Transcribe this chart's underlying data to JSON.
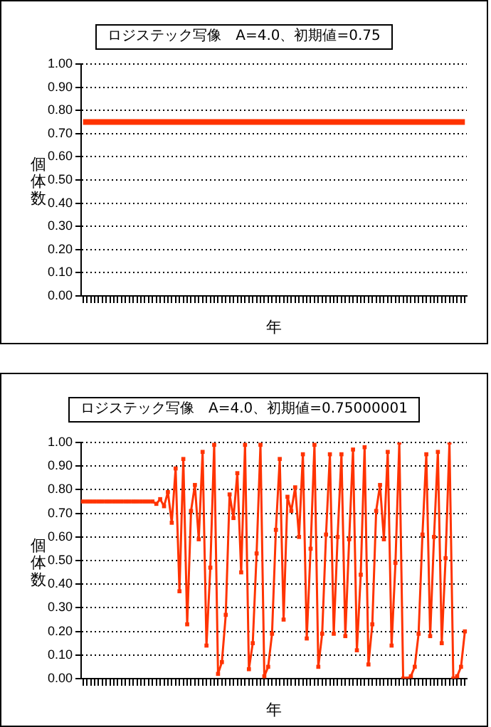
{
  "chart_data": [
    {
      "type": "line",
      "title": "ロジステック写像　A=4.0、初期値=0.75",
      "xlabel": "年",
      "ylabel": "個体数",
      "categories": [
        null,
        null,
        null,
        null,
        null,
        null,
        null,
        null,
        null,
        null,
        null,
        null,
        null,
        null,
        null,
        null,
        null,
        null,
        null,
        null,
        null,
        null,
        null,
        null,
        null,
        null,
        null,
        null,
        null,
        null,
        null,
        null,
        null,
        null,
        null,
        null,
        null,
        null,
        null,
        null,
        null,
        null,
        null,
        null,
        null,
        null,
        null,
        null,
        null,
        null,
        null,
        null,
        null,
        null,
        null,
        null,
        null,
        null,
        null,
        null,
        null,
        null,
        null,
        null,
        null,
        null,
        null,
        null,
        null,
        null,
        null,
        null,
        null,
        null,
        null,
        null,
        null,
        null,
        null,
        null,
        null,
        null,
        null,
        null,
        null,
        null,
        null,
        null,
        null,
        null,
        null,
        null,
        null,
        null,
        null,
        null,
        null,
        null,
        null,
        null
      ],
      "series": [
        {
          "color": "#ff3300",
          "values": [
            0.75,
            0.75,
            0.75,
            0.75,
            0.75,
            0.75,
            0.75,
            0.75,
            0.75,
            0.75,
            0.75,
            0.75,
            0.75,
            0.75,
            0.75,
            0.75,
            0.75,
            0.75,
            0.75,
            0.75,
            0.75,
            0.75,
            0.75,
            0.75,
            0.75,
            0.75,
            0.75,
            0.75,
            0.75,
            0.75,
            0.75,
            0.75,
            0.75,
            0.75,
            0.75,
            0.75,
            0.75,
            0.75,
            0.75,
            0.75,
            0.75,
            0.75,
            0.75,
            0.75,
            0.75,
            0.75,
            0.75,
            0.75,
            0.75,
            0.75,
            0.75,
            0.75,
            0.75,
            0.75,
            0.75,
            0.75,
            0.75,
            0.75,
            0.75,
            0.75,
            0.75,
            0.75,
            0.75,
            0.75,
            0.75,
            0.75,
            0.75,
            0.75,
            0.75,
            0.75,
            0.75,
            0.75,
            0.75,
            0.75,
            0.75,
            0.75,
            0.75,
            0.75,
            0.75,
            0.75,
            0.75,
            0.75,
            0.75,
            0.75,
            0.75,
            0.75,
            0.75,
            0.75,
            0.75,
            0.75,
            0.75,
            0.75,
            0.75,
            0.75,
            0.75,
            0.75,
            0.75,
            0.75,
            0.75,
            0.75
          ]
        }
      ],
      "ylim": [
        0,
        1
      ],
      "yticks": [
        {
          "value": 0,
          "label": "0.00"
        },
        {
          "value": 0.1,
          "label": "0.10"
        },
        {
          "value": 0.2,
          "label": "0.20"
        },
        {
          "value": 0.3,
          "label": "0.30"
        },
        {
          "value": 0.4,
          "label": "0.40"
        },
        {
          "value": 0.5,
          "label": "0.50"
        },
        {
          "value": 0.6,
          "label": "0.60"
        },
        {
          "value": 0.7,
          "label": "0.70"
        },
        {
          "value": 0.8,
          "label": "0.80"
        },
        {
          "value": 0.9,
          "label": "0.90"
        },
        {
          "value": 1,
          "label": "1.00"
        }
      ],
      "grid": "y",
      "legend": false,
      "marker": "none"
    },
    {
      "type": "line",
      "title": "ロジステック写像　A=4.0、初期値=0.75000001",
      "xlabel": "年",
      "ylabel": "個体数",
      "categories": [
        null,
        null,
        null,
        null,
        null,
        null,
        null,
        null,
        null,
        null,
        null,
        null,
        null,
        null,
        null,
        null,
        null,
        null,
        null,
        null,
        null,
        null,
        null,
        null,
        null,
        null,
        null,
        null,
        null,
        null,
        null,
        null,
        null,
        null,
        null,
        null,
        null,
        null,
        null,
        null,
        null,
        null,
        null,
        null,
        null,
        null,
        null,
        null,
        null,
        null,
        null,
        null,
        null,
        null,
        null,
        null,
        null,
        null,
        null,
        null,
        null,
        null,
        null,
        null,
        null,
        null,
        null,
        null,
        null,
        null,
        null,
        null,
        null,
        null,
        null,
        null,
        null,
        null,
        null,
        null,
        null,
        null,
        null,
        null,
        null,
        null,
        null,
        null,
        null,
        null,
        null,
        null,
        null,
        null,
        null,
        null,
        null,
        null,
        null,
        null
      ],
      "series": [
        {
          "color": "#ff3300",
          "values": [
            0.75,
            0.75,
            0.75,
            0.75,
            0.75,
            0.75,
            0.75,
            0.75,
            0.75,
            0.75,
            0.75,
            0.75,
            0.75,
            0.75,
            0.75,
            0.75,
            0.75,
            0.75,
            0.75,
            0.74,
            0.76,
            0.73,
            0.79,
            0.66,
            0.89,
            0.37,
            0.93,
            0.23,
            0.71,
            0.82,
            0.59,
            0.96,
            0.14,
            0.47,
            0.99,
            0.02,
            0.07,
            0.27,
            0.78,
            0.68,
            0.87,
            0.45,
            0.99,
            0.04,
            0.15,
            0.53,
            0.99,
            0.01,
            0.05,
            0.19,
            0.63,
            0.93,
            0.25,
            0.77,
            0.71,
            0.81,
            0.6,
            0.95,
            0.17,
            0.55,
            0.99,
            0.05,
            0.19,
            0.61,
            0.95,
            0.19,
            0.6,
            0.95,
            0.18,
            0.59,
            0.97,
            0.12,
            0.44,
            0.98,
            0.06,
            0.23,
            0.71,
            0.82,
            0.59,
            0.96,
            0.14,
            0.49,
            1,
            0,
            0,
            0.01,
            0.05,
            0.19,
            0.61,
            0.95,
            0.18,
            0.6,
            0.96,
            0.15,
            0.51,
            1,
            0,
            0.01,
            0.05,
            0.2
          ]
        }
      ],
      "ylim": [
        0,
        1
      ],
      "yticks": [
        {
          "value": 0,
          "label": "0.00"
        },
        {
          "value": 0.1,
          "label": "0.10"
        },
        {
          "value": 0.2,
          "label": "0.20"
        },
        {
          "value": 0.3,
          "label": "0.30"
        },
        {
          "value": 0.4,
          "label": "0.40"
        },
        {
          "value": 0.5,
          "label": "0.50"
        },
        {
          "value": 0.6,
          "label": "0.60"
        },
        {
          "value": 0.7,
          "label": "0.70"
        },
        {
          "value": 0.8,
          "label": "0.80"
        },
        {
          "value": 0.9,
          "label": "0.90"
        },
        {
          "value": 1,
          "label": "1.00"
        }
      ],
      "grid": "y",
      "legend": false,
      "marker": "square"
    }
  ]
}
